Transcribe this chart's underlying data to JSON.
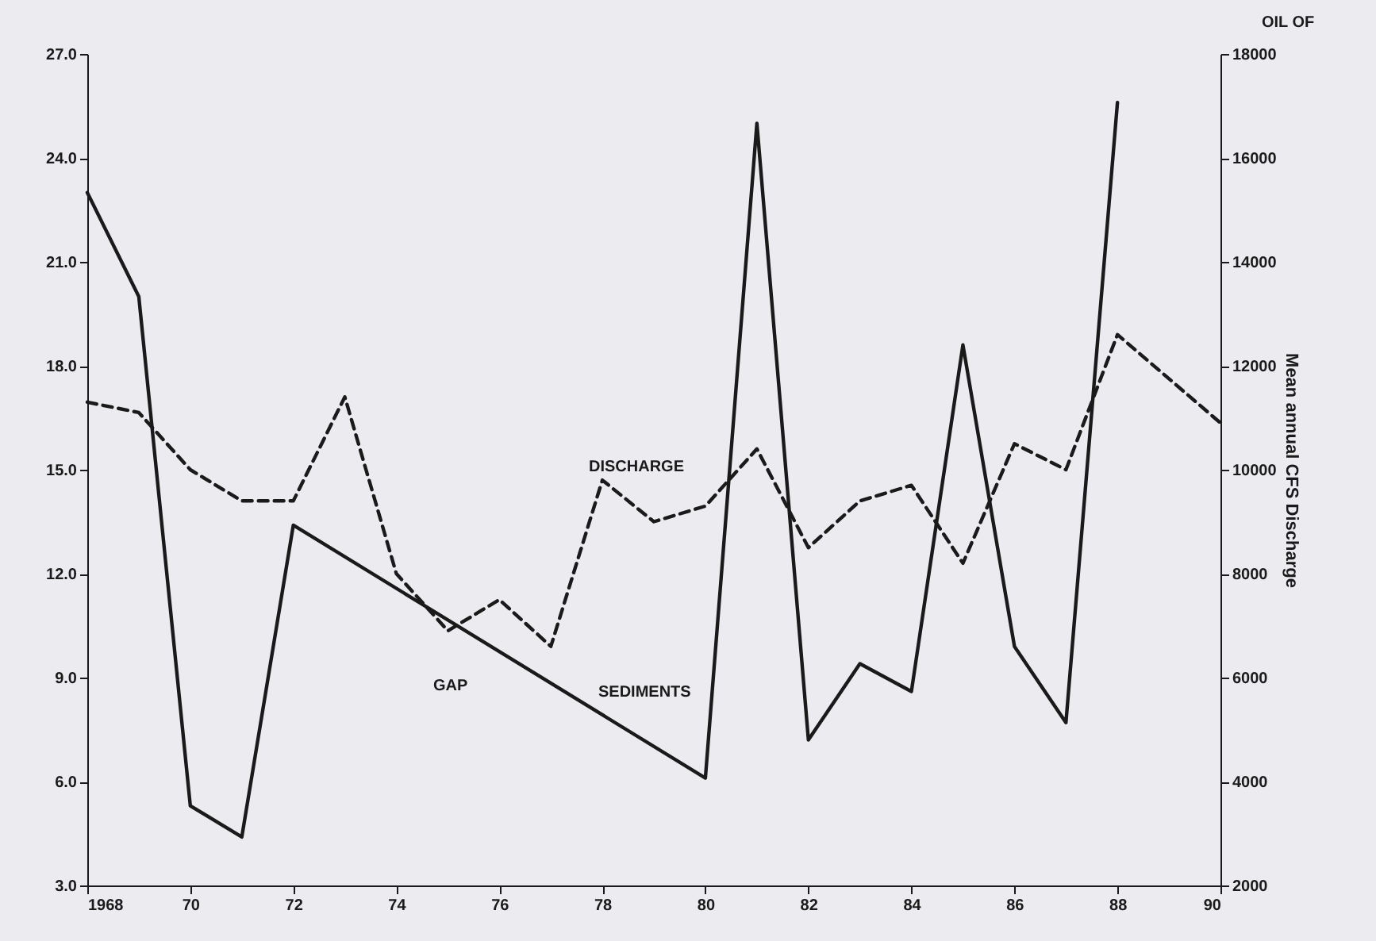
{
  "chart_data": {
    "type": "line",
    "y2label": "Mean annual CFS Discharge",
    "xlim": [
      1968,
      1990
    ],
    "xticks": [
      {
        "value": 1968,
        "label": "1968"
      },
      {
        "value": 1970,
        "label": "70"
      },
      {
        "value": 1972,
        "label": "72"
      },
      {
        "value": 1974,
        "label": "74"
      },
      {
        "value": 1976,
        "label": "76"
      },
      {
        "value": 1978,
        "label": "78"
      },
      {
        "value": 1980,
        "label": "80"
      },
      {
        "value": 1982,
        "label": "82"
      },
      {
        "value": 1984,
        "label": "84"
      },
      {
        "value": 1986,
        "label": "86"
      },
      {
        "value": 1988,
        "label": "88"
      },
      {
        "value": 1990,
        "label": "90"
      }
    ],
    "ylim": [
      3,
      27
    ],
    "yticks": [
      {
        "value": 3,
        "label": "3.0"
      },
      {
        "value": 6,
        "label": "6.0"
      },
      {
        "value": 9,
        "label": "9.0"
      },
      {
        "value": 12,
        "label": "12.0"
      },
      {
        "value": 15,
        "label": "15.0"
      },
      {
        "value": 18,
        "label": "18.0"
      },
      {
        "value": 21,
        "label": "21.0"
      },
      {
        "value": 24,
        "label": "24.0"
      },
      {
        "value": 27,
        "label": "27.0"
      }
    ],
    "y2lim": [
      2000,
      18000
    ],
    "y2ticks": [
      2000,
      4000,
      6000,
      8000,
      10000,
      12000,
      14000,
      16000,
      18000
    ],
    "grid": false,
    "marker": "none",
    "series": [
      {
        "name": "SEDIMENTS",
        "color": "#1a1a1a",
        "line_style": "solid",
        "x": [
          1968,
          1969,
          1970,
          1971,
          1972,
          1980,
          1981,
          1982,
          1983,
          1984,
          1985,
          1986,
          1987,
          1988
        ],
        "values": [
          23.0,
          20.0,
          5.3,
          4.4,
          13.4,
          6.1,
          25.0,
          7.2,
          9.4,
          8.6,
          18.6,
          9.9,
          7.7,
          25.6
        ]
      },
      {
        "name": "DISCHARGE",
        "color": "#1a1a1a",
        "line_style": "dashed",
        "axis": "y2",
        "x": [
          1968,
          1969,
          1970,
          1971,
          1972,
          1973,
          1974,
          1975,
          1976,
          1977,
          1978,
          1979,
          1980,
          1981,
          1982,
          1983,
          1984,
          1985,
          1986,
          1987,
          1988,
          1990
        ],
        "values": [
          11300,
          11100,
          10000,
          9400,
          9400,
          11400,
          8000,
          6900,
          7500,
          6600,
          9800,
          9000,
          9300,
          10400,
          8500,
          9400,
          9700,
          8200,
          10500,
          10000,
          12600,
          10900
        ]
      }
    ],
    "annotations": [
      "GAP",
      "OIL OF"
    ]
  }
}
